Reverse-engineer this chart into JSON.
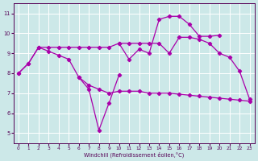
{
  "xlabel": "Windchill (Refroidissement éolien,°C)",
  "bg_color": "#cce8e8",
  "grid_color": "#ffffff",
  "line_color": "#aa00aa",
  "ylim": [
    4.5,
    11.5
  ],
  "xlim": [
    -0.5,
    23.5
  ],
  "yticks": [
    5,
    6,
    7,
    8,
    9,
    10,
    11
  ],
  "xticks": [
    0,
    1,
    2,
    3,
    4,
    5,
    6,
    7,
    8,
    9,
    10,
    11,
    12,
    13,
    14,
    15,
    16,
    17,
    18,
    19,
    20,
    21,
    22,
    23
  ],
  "line_upper": {
    "x": [
      0,
      1,
      2,
      3,
      4,
      5,
      6,
      7,
      8,
      9,
      10,
      11,
      12,
      13,
      14,
      15,
      16,
      17,
      18,
      19,
      20,
      21,
      22,
      23
    ],
    "y": [
      8.0,
      8.5,
      9.3,
      9.3,
      9.3,
      9.3,
      9.3,
      9.3,
      9.3,
      9.3,
      9.5,
      9.5,
      9.5,
      9.5,
      9.5,
      9.0,
      9.8,
      9.8,
      9.7,
      9.5,
      9.0,
      8.8,
      8.1,
      6.7
    ]
  },
  "line_lower_flat": {
    "x": [
      0,
      1,
      2,
      3,
      4,
      5,
      6,
      7,
      8,
      9,
      10,
      11,
      12,
      13,
      14,
      15,
      16,
      17,
      18,
      19,
      20,
      21,
      22,
      23
    ],
    "y": [
      8.0,
      8.5,
      9.3,
      9.1,
      8.9,
      8.7,
      7.8,
      7.4,
      7.2,
      7.0,
      7.1,
      7.1,
      7.1,
      7.0,
      7.0,
      7.0,
      6.95,
      6.9,
      6.85,
      6.8,
      6.75,
      6.7,
      6.65,
      6.6
    ]
  },
  "line_v": {
    "x": [
      6,
      7,
      8,
      9,
      10
    ],
    "y": [
      7.8,
      7.2,
      5.15,
      6.5,
      7.9
    ]
  },
  "line_peak": {
    "x": [
      10,
      11,
      12,
      13,
      14,
      15,
      16,
      17,
      18,
      19,
      20
    ],
    "y": [
      9.5,
      8.7,
      9.2,
      9.0,
      10.7,
      10.85,
      10.85,
      10.45,
      9.85,
      9.85,
      9.9
    ]
  }
}
